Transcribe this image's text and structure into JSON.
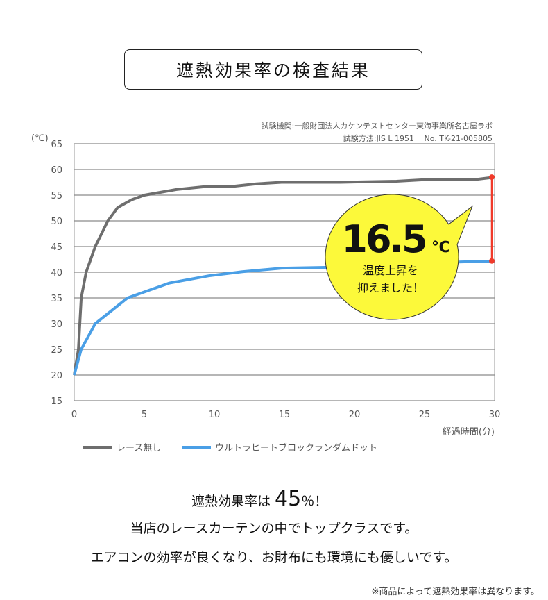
{
  "title": "遮熱効果率の検査結果",
  "source_line1": "試験機関:一般財団法人カケンテストセンター東海事業所名古屋ラボ",
  "source_line2": "試験方法:JIS L 1951　 No. TK-21-005805",
  "chart_data": {
    "type": "line",
    "ylabel": "(℃)",
    "xlabel": "経過時間(分)",
    "xlim": [
      0,
      30
    ],
    "ylim": [
      15,
      65
    ],
    "xticks": [
      0,
      5,
      10,
      15,
      20,
      25,
      30
    ],
    "yticks": [
      15,
      20,
      25,
      30,
      35,
      40,
      45,
      50,
      55,
      60,
      65
    ],
    "grid": "horizontal",
    "legend_position": "bottom-left",
    "series": [
      {
        "name": "レース無し",
        "color": "#6e6e6e",
        "x": [
          0,
          0.3,
          0.5,
          0.85,
          1.5,
          2.4,
          3.1,
          4.1,
          5,
          7.3,
          9.5,
          11.3,
          13,
          14.8,
          19,
          23,
          25,
          28.5,
          30
        ],
        "y": [
          20,
          25,
          35,
          40,
          45,
          50,
          52.6,
          54.1,
          55,
          56.1,
          56.7,
          56.7,
          57.2,
          57.5,
          57.5,
          57.7,
          58,
          58,
          58.5
        ]
      },
      {
        "name": "ウルトラヒートブロックランダムドット",
        "color": "#4a9fe6",
        "x": [
          0,
          0.5,
          1.5,
          3.8,
          6.8,
          9.6,
          12,
          14.8,
          19,
          25,
          30
        ],
        "y": [
          20,
          25,
          30,
          35,
          37.9,
          39.3,
          40.1,
          40.8,
          41,
          41.8,
          42.2
        ]
      }
    ],
    "annotation": {
      "value": "16.5",
      "unit": "℃",
      "line1": "温度上昇を",
      "line2": "抑えました！",
      "marker_color": "#f03a2a",
      "bubble_color": "#fcf93a"
    }
  },
  "summary": {
    "headline_prefix": "遮熱効果率は",
    "headline_value": "45",
    "headline_suffix": "％！",
    "line1": "当店のレースカーテンの中でトップクラスです。",
    "line2": "エアコンの効率が良くなり、お財布にも環境にも優しいです。",
    "note": "※商品によって遮熱効果率は異なります。"
  }
}
